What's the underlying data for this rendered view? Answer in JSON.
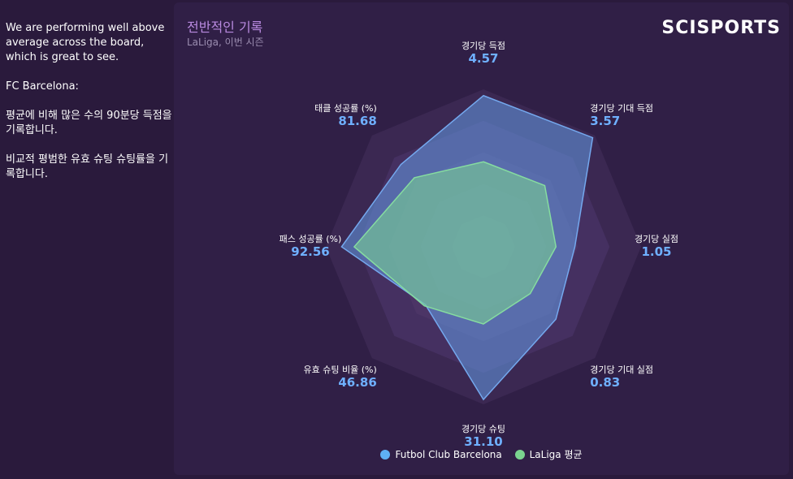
{
  "left_panel": {
    "summary": "We are performing well above average across the board, which is great to see.",
    "team": "FC Barcelona:",
    "strength": "평균에 비해 많은 수의 90분당 득점을 기록합니다.",
    "weakness": "비교적 평범한 유효 슈팅 슈팅률을 기록합니다."
  },
  "card": {
    "title": "전반적인 기록",
    "subtitle": "LaLiga, 이번 시즌",
    "logo": "SCISPORTS"
  },
  "colors": {
    "barcelona": "#5b9bd5",
    "laliga": "#7ac98a",
    "axis_value": "#6fb0ff"
  },
  "chart_data": {
    "type": "radar",
    "title": "전반적인 기록",
    "subtitle": "LaLiga, 이번 시즌",
    "axes": [
      {
        "label": "경기당 득점",
        "value": "4.57"
      },
      {
        "label": "경기당 기대 득점",
        "value": "3.57"
      },
      {
        "label": "경기당 실점",
        "value": "1.05"
      },
      {
        "label": "경기당 기대 실점",
        "value": "0.83"
      },
      {
        "label": "경기당 슈팅",
        "value": "31.10"
      },
      {
        "label": "유효 슈팅 비율 (%)",
        "value": "46.86"
      },
      {
        "label": "패스 성공률 (%)",
        "value": "92.56"
      },
      {
        "label": "태클 성공률 (%)",
        "value": "81.68"
      }
    ],
    "series": [
      {
        "name": "Futbol Club Barcelona",
        "values": [
          0.96,
          0.98,
          0.58,
          0.65,
          0.97,
          0.52,
          0.9,
          0.74
        ]
      },
      {
        "name": "LaLiga 평균",
        "values": [
          0.54,
          0.55,
          0.46,
          0.42,
          0.49,
          0.53,
          0.82,
          0.62
        ]
      }
    ],
    "rings": 5,
    "legend_position": "bottom"
  }
}
